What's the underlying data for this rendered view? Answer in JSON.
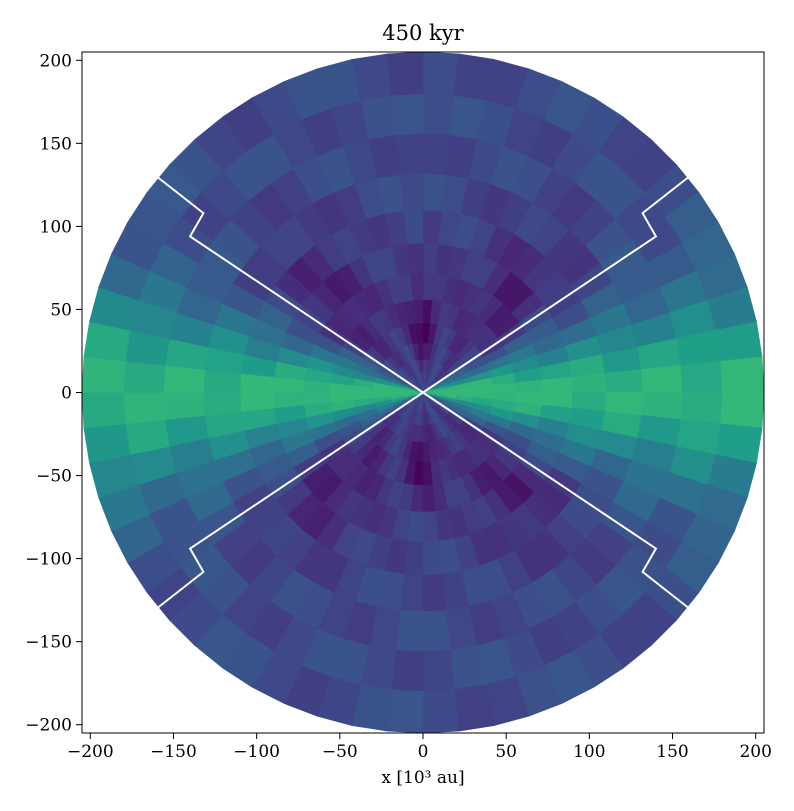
{
  "chart_data": {
    "type": "heatmap",
    "title": "450 kyr",
    "xlabel": "x [10³ au]",
    "ylabel": "",
    "xlim": [
      -205,
      205
    ],
    "ylim": [
      -205,
      205
    ],
    "domain_radius": 205,
    "xticks": [
      -200,
      -150,
      -100,
      -50,
      0,
      50,
      100,
      150,
      200
    ],
    "yticks": [
      -200,
      -150,
      -100,
      -50,
      0,
      50,
      100,
      150,
      200
    ],
    "xtick_labels": [
      "−200",
      "−150",
      "−100",
      "−50",
      "0",
      "50",
      "100",
      "150",
      "200"
    ],
    "ytick_labels": [
      "−200",
      "−150",
      "−100",
      "−50",
      "0",
      "50",
      "100",
      "150",
      "200"
    ],
    "colormap": "viridis",
    "grid": false,
    "radial_edges": [
      0,
      6,
      12,
      20,
      30,
      42,
      56,
      72,
      90,
      110,
      132,
      156,
      180,
      205
    ],
    "angular_step_deg": 6,
    "contour_boundary": [
      [
        0,
        0
      ],
      [
        140,
        94
      ],
      [
        132,
        108
      ],
      [
        160,
        130
      ],
      [
        0,
        0
      ],
      [
        -140,
        94
      ],
      [
        -132,
        108
      ],
      [
        -160,
        130
      ],
      [
        0,
        0
      ],
      [
        -140,
        -94
      ],
      [
        -132,
        -108
      ],
      [
        -160,
        -130
      ],
      [
        0,
        0
      ],
      [
        140,
        -94
      ],
      [
        132,
        -108
      ],
      [
        160,
        -130
      ]
    ],
    "contour_color": "#ffffff"
  }
}
